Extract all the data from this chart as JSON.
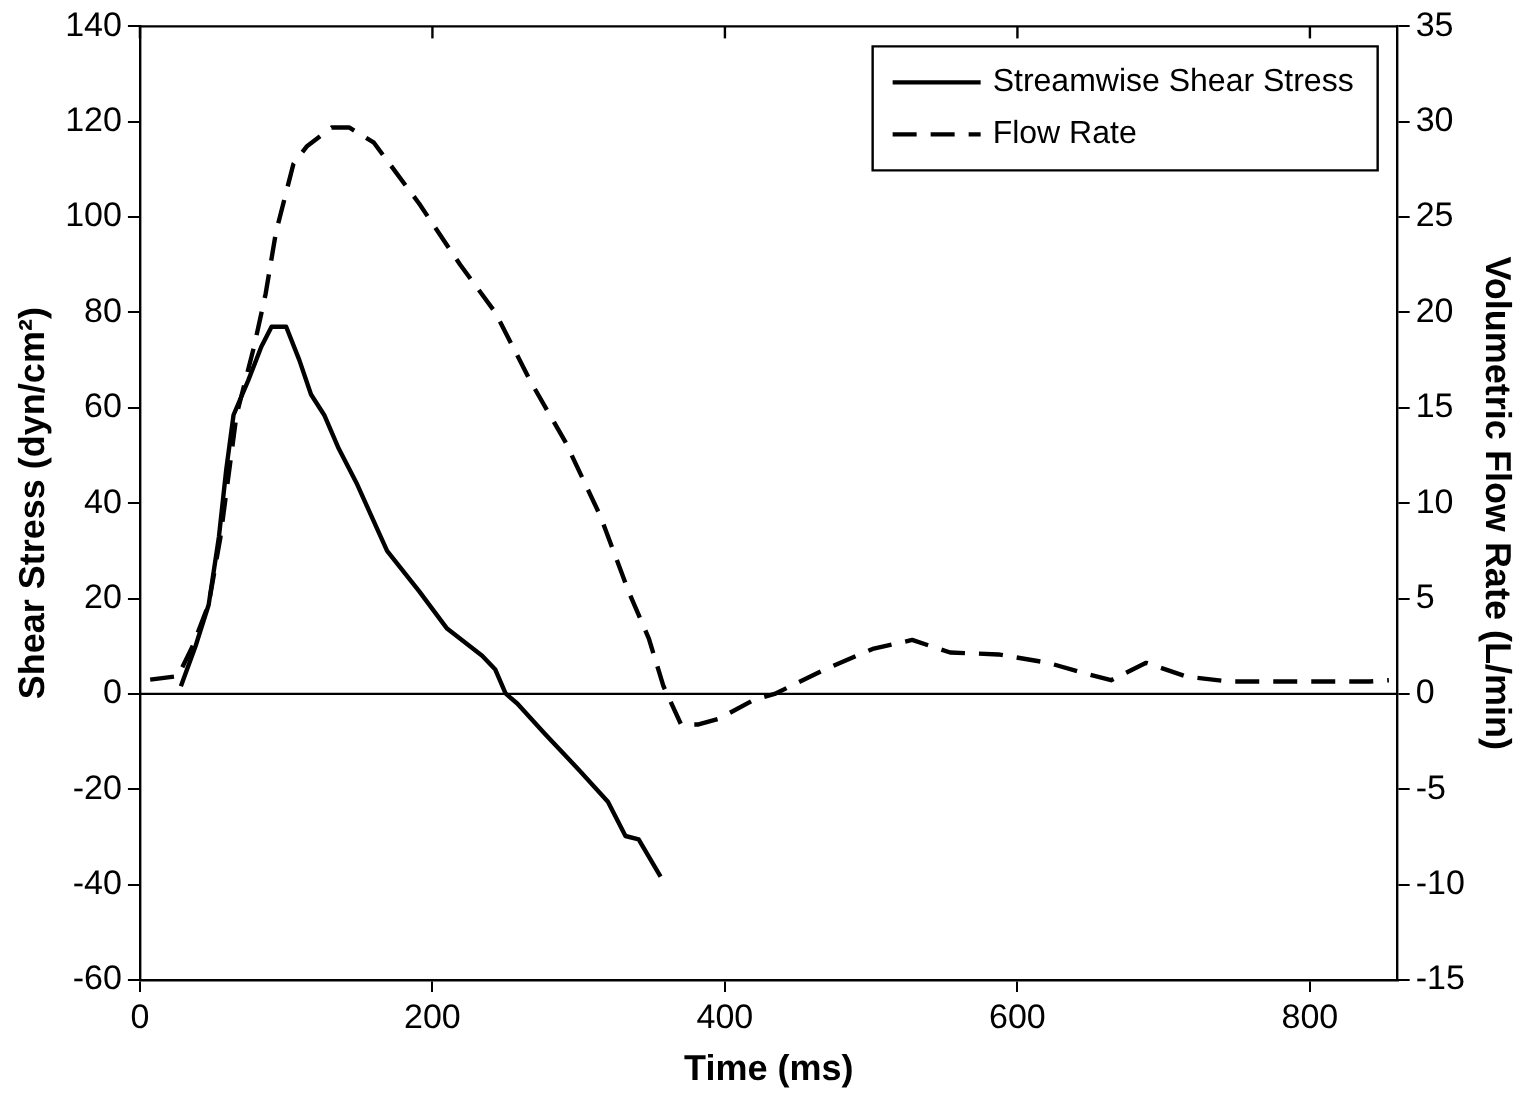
{
  "chart_data": {
    "type": "line",
    "xlabel": "Time (ms)",
    "ylabel": "Shear Stress (dyn/cm²)",
    "y2label": "Volumetric Flow Rate (L/min)",
    "xlim": [
      0,
      860
    ],
    "xticks": [
      0,
      200,
      400,
      600,
      800
    ],
    "ylim": [
      -60,
      140
    ],
    "yticks": [
      -60,
      -40,
      -20,
      0,
      20,
      40,
      60,
      80,
      100,
      120,
      140
    ],
    "y2lim": [
      -15,
      35
    ],
    "y2ticks": [
      -15,
      -10,
      -5,
      0,
      5,
      10,
      15,
      20,
      25,
      30,
      35
    ],
    "grid": false,
    "legend": "top right",
    "marker": "none",
    "ref_lines": [
      {
        "axis": "y",
        "value": 0,
        "color": "#000000",
        "line_style": "solid"
      }
    ],
    "series": [
      {
        "name": "Streamwise Shear Stress",
        "color": "#000000",
        "line_style": "solid",
        "x": [
          28,
          38,
          47,
          54,
          59,
          64,
          74,
          83,
          90,
          100,
          109,
          117,
          126,
          136,
          148,
          169,
          191,
          210,
          234,
          243,
          250,
          258,
          277,
          301,
          320,
          332,
          341,
          356
        ],
        "values": [
          1.6,
          10,
          18.7,
          32.9,
          47,
          58.5,
          65.7,
          72.8,
          77,
          77,
          70,
          62.8,
          58.5,
          51.4,
          44.3,
          30,
          21.5,
          13.7,
          8,
          5.1,
          0.1,
          -2,
          -8.4,
          -16.2,
          -22.6,
          -29.8,
          -30.5,
          -38.3
        ]
      },
      {
        "name": "Flow Rate",
        "color": "#000000",
        "line_style": "dashed",
        "axis": "y2",
        "x": [
          7,
          26,
          36,
          47,
          55,
          66,
          78,
          86,
          93,
          105,
          114,
          131,
          143,
          160,
          191,
          219,
          243,
          267,
          291,
          315,
          334,
          348,
          358,
          370,
          382,
          396,
          420,
          434,
          468,
          501,
          528,
          554,
          587,
          621,
          650,
          664,
          688,
          716,
          745,
          841,
          854
        ],
        "values": [
          0.75,
          0.93,
          2.5,
          4.7,
          8.2,
          14.6,
          18.2,
          21,
          24.2,
          27.8,
          28.7,
          29.7,
          29.7,
          28.9,
          25.7,
          22.5,
          20,
          16.4,
          13.2,
          9.3,
          5.4,
          2.9,
          0.4,
          -1.6,
          -1.6,
          -1.3,
          -0.3,
          0,
          1.27,
          2.36,
          2.83,
          2.17,
          2.07,
          1.63,
          1,
          0.72,
          1.63,
          0.9,
          0.65,
          0.65,
          0.72
        ]
      }
    ]
  }
}
